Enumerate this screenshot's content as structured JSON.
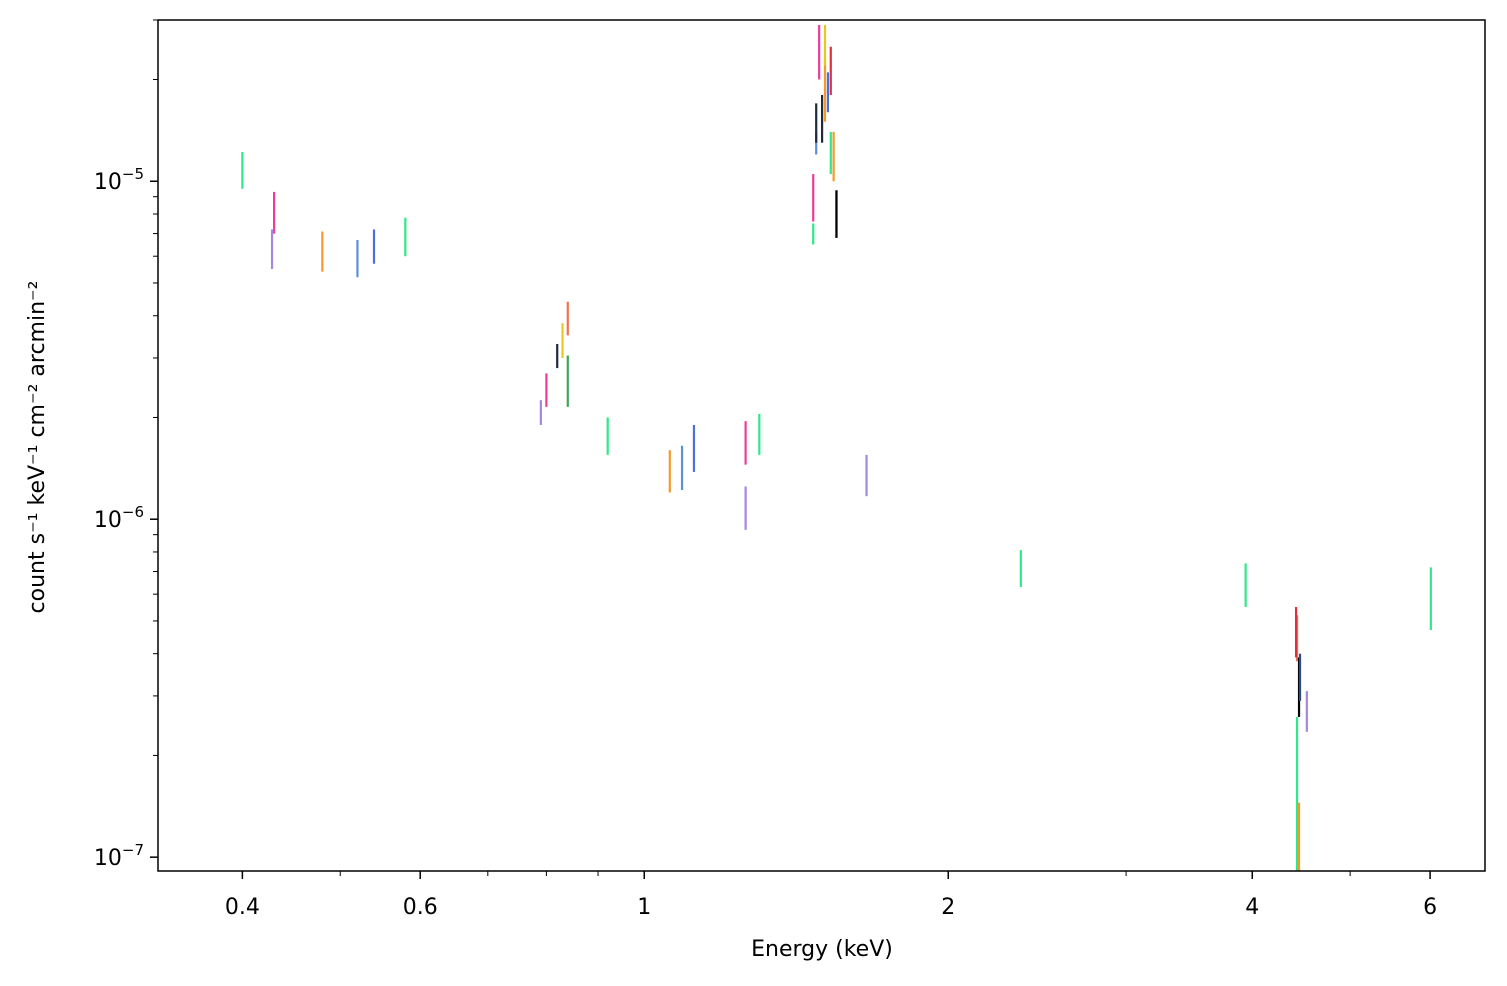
{
  "chart_data": {
    "type": "scatter",
    "title": "",
    "xlabel": "Energy (keV)",
    "ylabel": "count s⁻¹ keV⁻¹ cm⁻² arcmin⁻²",
    "xscale": "log",
    "yscale": "log",
    "xlim": [
      0.33,
      6.8
    ],
    "ylim": [
      9.1e-08,
      3e-05
    ],
    "x_major_ticks": [
      {
        "value": 0.4,
        "label": "0.4"
      },
      {
        "value": 0.6,
        "label": "0.6"
      },
      {
        "value": 1,
        "label": "1"
      },
      {
        "value": 2,
        "label": "2"
      },
      {
        "value": 4,
        "label": "4"
      },
      {
        "value": 6,
        "label": "6"
      }
    ],
    "x_minor_ticks": [
      0.5,
      0.7,
      0.8,
      0.9,
      3,
      5
    ],
    "y_major_ticks": [
      {
        "value": 1e-05,
        "base": "10",
        "exp": "−5"
      },
      {
        "value": 1e-06,
        "base": "10",
        "exp": "−6"
      },
      {
        "value": 1e-07,
        "base": "10",
        "exp": "−7"
      }
    ],
    "grid": false,
    "legend": "none",
    "series": [
      {
        "color": "#2ee88a",
        "points": [
          {
            "x": 0.4,
            "ylo": 9.5e-06,
            "yhi": 1.22e-05
          },
          {
            "x": 0.58,
            "ylo": 6e-06,
            "yhi": 7.8e-06
          },
          {
            "x": 0.92,
            "ylo": 1.55e-06,
            "yhi": 2e-06
          },
          {
            "x": 1.3,
            "ylo": 1.55e-06,
            "yhi": 2.05e-06
          },
          {
            "x": 1.47,
            "ylo": 6.5e-06,
            "yhi": 7.5e-06
          },
          {
            "x": 1.53,
            "ylo": 1.05e-05,
            "yhi": 1.4e-05
          },
          {
            "x": 2.36,
            "ylo": 6.3e-07,
            "yhi": 8.1e-07
          },
          {
            "x": 3.94,
            "ylo": 5.5e-07,
            "yhi": 7.4e-07
          },
          {
            "x": 4.43,
            "ylo": 9.1e-08,
            "yhi": 2.6e-07
          },
          {
            "x": 6.01,
            "ylo": 4.7e-07,
            "yhi": 7.2e-07
          }
        ]
      },
      {
        "color": "#ee3c9a",
        "points": [
          {
            "x": 0.43,
            "ylo": 7e-06,
            "yhi": 9.3e-06
          },
          {
            "x": 0.8,
            "ylo": 2.15e-06,
            "yhi": 2.7e-06
          },
          {
            "x": 1.26,
            "ylo": 1.45e-06,
            "yhi": 1.95e-06
          },
          {
            "x": 1.47,
            "ylo": 7.6e-06,
            "yhi": 1.05e-05
          },
          {
            "x": 1.49,
            "ylo": 2e-05,
            "yhi": 2.9e-05
          }
        ]
      },
      {
        "color": "#a586e0",
        "points": [
          {
            "x": 0.428,
            "ylo": 5.5e-06,
            "yhi": 7.2e-06
          },
          {
            "x": 0.79,
            "ylo": 1.9e-06,
            "yhi": 2.25e-06
          },
          {
            "x": 1.26,
            "ylo": 9.3e-07,
            "yhi": 1.25e-06
          },
          {
            "x": 1.66,
            "ylo": 1.17e-06,
            "yhi": 1.55e-06
          },
          {
            "x": 4.53,
            "ylo": 2.35e-07,
            "yhi": 3.1e-07
          }
        ]
      },
      {
        "color": "#f59a2a",
        "points": [
          {
            "x": 0.48,
            "ylo": 5.4e-06,
            "yhi": 7.1e-06
          },
          {
            "x": 1.06,
            "ylo": 1.2e-06,
            "yhi": 1.6e-06
          },
          {
            "x": 1.51,
            "ylo": 1.5e-05,
            "yhi": 2.3e-05
          },
          {
            "x": 1.54,
            "ylo": 1e-05,
            "yhi": 1.4e-05
          },
          {
            "x": 4.45,
            "ylo": 9.1e-08,
            "yhi": 1.45e-07
          }
        ]
      },
      {
        "color": "#5b8fd6",
        "points": [
          {
            "x": 0.52,
            "ylo": 5.2e-06,
            "yhi": 6.7e-06
          },
          {
            "x": 1.09,
            "ylo": 1.22e-06,
            "yhi": 1.65e-06
          },
          {
            "x": 1.48,
            "ylo": 1.2e-05,
            "yhi": 1.4e-05
          }
        ]
      },
      {
        "color": "#4c6fd8",
        "points": [
          {
            "x": 0.54,
            "ylo": 5.7e-06,
            "yhi": 7.2e-06
          },
          {
            "x": 1.12,
            "ylo": 1.38e-06,
            "yhi": 1.9e-06
          },
          {
            "x": 1.52,
            "ylo": 1.6e-05,
            "yhi": 2.1e-05
          }
        ]
      },
      {
        "color": "#f2704f",
        "points": [
          {
            "x": 0.84,
            "ylo": 3.5e-06,
            "yhi": 4.4e-06
          },
          {
            "x": 4.43,
            "ylo": 3.8e-07,
            "yhi": 5.2e-07
          }
        ]
      },
      {
        "color": "#e8c81a",
        "points": [
          {
            "x": 0.83,
            "ylo": 3e-06,
            "yhi": 3.8e-06
          },
          {
            "x": 1.51,
            "ylo": 2.2e-05,
            "yhi": 2.9e-05
          }
        ]
      },
      {
        "color": "#1f2a3a",
        "points": [
          {
            "x": 0.82,
            "ylo": 2.8e-06,
            "yhi": 3.3e-06
          },
          {
            "x": 1.48,
            "ylo": 1.3e-05,
            "yhi": 1.7e-05
          },
          {
            "x": 1.5,
            "ylo": 1.3e-05,
            "yhi": 1.8e-05
          }
        ]
      },
      {
        "color": "#3aa85a",
        "points": [
          {
            "x": 0.84,
            "ylo": 2.15e-06,
            "yhi": 3.05e-06
          },
          {
            "x": 1.55,
            "ylo": 6.8e-06,
            "yhi": 9.4e-06
          }
        ]
      },
      {
        "color": "#e0303a",
        "points": [
          {
            "x": 4.42,
            "ylo": 3.9e-07,
            "yhi": 5.5e-07
          },
          {
            "x": 1.53,
            "ylo": 1.8e-05,
            "yhi": 2.5e-05
          }
        ]
      },
      {
        "color": "#000000",
        "points": [
          {
            "x": 1.55,
            "ylo": 6.8e-06,
            "yhi": 9.4e-06
          },
          {
            "x": 4.45,
            "ylo": 2.6e-07,
            "yhi": 3.9e-07
          }
        ]
      },
      {
        "color": "#2a4d8a",
        "points": [
          {
            "x": 4.46,
            "ylo": 2.9e-07,
            "yhi": 4e-07
          }
        ]
      }
    ]
  }
}
